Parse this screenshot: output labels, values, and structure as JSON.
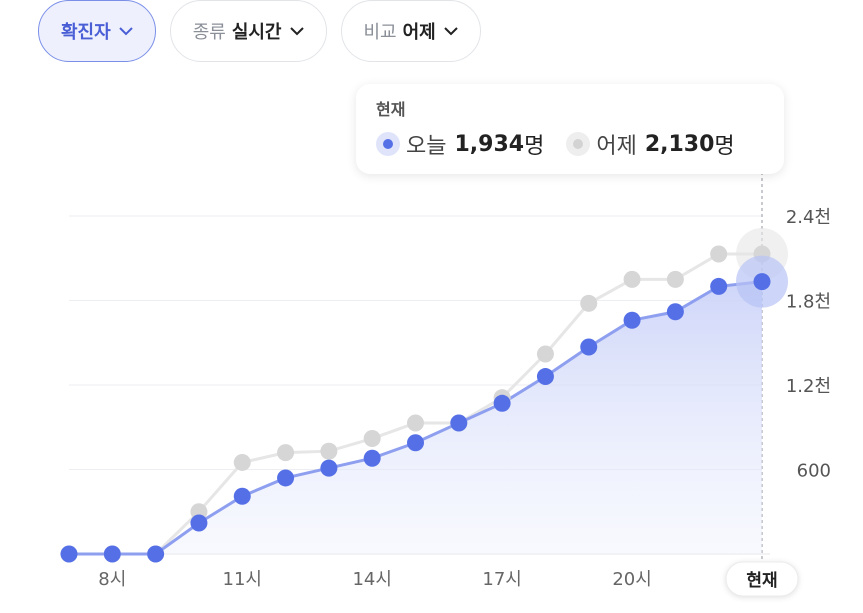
{
  "filters": {
    "metric": {
      "label": "확진자"
    },
    "type": {
      "key": "종류",
      "value": "실시간"
    },
    "compare": {
      "key": "비교",
      "value": "어제"
    }
  },
  "tooltip": {
    "title": "현재",
    "today": {
      "label": "오늘",
      "value": "1,934",
      "unit": "명"
    },
    "yesterday": {
      "label": "어제",
      "value": "2,130",
      "unit": "명"
    }
  },
  "colors": {
    "today": "#5570e6",
    "today_line": "#8e9ff0",
    "yesterday": "#d6d6d6",
    "yesterday_line": "#e6e6e6",
    "active_pill_text": "#4a5fd6"
  },
  "chart_data": {
    "type": "line",
    "x_tick_labels": [
      "8시",
      "11시",
      "14시",
      "17시",
      "20시",
      "현재"
    ],
    "y_tick_labels": [
      "600",
      "1.2천",
      "1.8천",
      "2.4천"
    ],
    "y_ticks": [
      600,
      1200,
      1800,
      2400
    ],
    "ylim": [
      0,
      2400
    ],
    "x_hours": [
      7,
      8,
      9,
      10,
      11,
      12,
      13,
      14,
      15,
      16,
      17,
      18,
      19,
      20,
      21,
      22,
      23
    ],
    "series": [
      {
        "name": "오늘",
        "values": [
          0,
          0,
          0,
          220,
          410,
          540,
          610,
          680,
          790,
          930,
          1070,
          1260,
          1470,
          1660,
          1720,
          1900,
          1934
        ]
      },
      {
        "name": "어제",
        "values": [
          0,
          0,
          0,
          300,
          650,
          720,
          730,
          820,
          930,
          930,
          1110,
          1420,
          1780,
          1950,
          1950,
          2130,
          2130
        ]
      }
    ],
    "grid": true,
    "legend": "tooltip"
  }
}
